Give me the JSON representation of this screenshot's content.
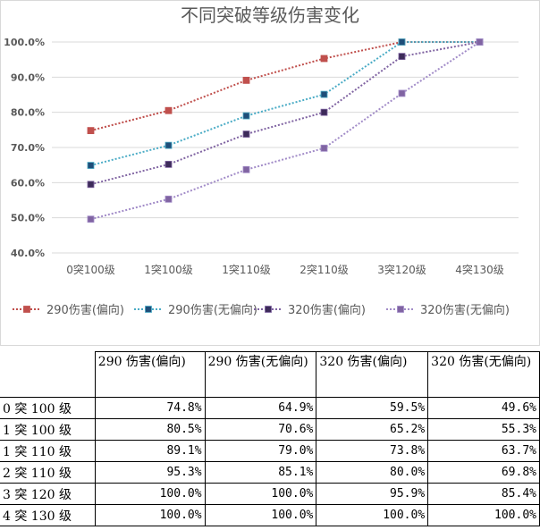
{
  "chart_data": {
    "type": "line",
    "title": "不同突破等级伤害变化",
    "categories": [
      "0突100级",
      "1突100级",
      "1突110级",
      "2突110级",
      "3突120级",
      "4突130级"
    ],
    "ylim": [
      0.4,
      1.0
    ],
    "yticks": [
      "40.0%",
      "50.0%",
      "60.0%",
      "70.0%",
      "80.0%",
      "90.0%",
      "100.0%"
    ],
    "grid": true,
    "legend_position": "bottom",
    "series": [
      {
        "name": "290伤害(偏向)",
        "color": "#c0504d",
        "values": [
          0.748,
          0.805,
          0.891,
          0.953,
          1.0,
          1.0
        ]
      },
      {
        "name": "290伤害(无偏向)",
        "color": "#4bacc6",
        "marker_color": "#1f4e79",
        "values": [
          0.649,
          0.706,
          0.79,
          0.851,
          1.0,
          1.0
        ]
      },
      {
        "name": "320伤害(偏向)",
        "color": "#8064a2",
        "marker_color": "#3d2b5a",
        "values": [
          0.595,
          0.652,
          0.738,
          0.8,
          0.959,
          1.0
        ]
      },
      {
        "name": "320伤害(无偏向)",
        "color": "#a28cc8",
        "marker_color": "#8064a2",
        "values": [
          0.496,
          0.553,
          0.637,
          0.698,
          0.854,
          1.0
        ]
      }
    ]
  },
  "table": {
    "headers": [
      "",
      "290 伤害(偏向)",
      "290 伤害(无偏向)",
      "320 伤害(偏向)",
      "320 伤害(无偏向)"
    ],
    "rows": [
      [
        "0 突 100 级",
        "74.8%",
        "64.9%",
        "59.5%",
        "49.6%"
      ],
      [
        "1 突 100 级",
        "80.5%",
        "70.6%",
        "65.2%",
        "55.3%"
      ],
      [
        "1 突 110 级",
        "89.1%",
        "79.0%",
        "73.8%",
        "63.7%"
      ],
      [
        "2 突 110 级",
        "95.3%",
        "85.1%",
        "80.0%",
        "69.8%"
      ],
      [
        "3 突 120 级",
        "100.0%",
        "100.0%",
        "95.9%",
        "85.4%"
      ],
      [
        "4 突 130 级",
        "100.0%",
        "100.0%",
        "100.0%",
        "100.0%"
      ]
    ]
  }
}
